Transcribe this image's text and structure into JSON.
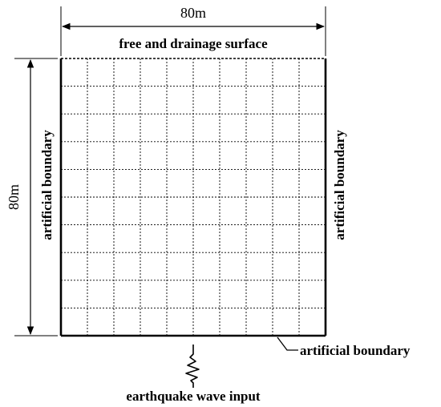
{
  "diagram": {
    "width_label": "80m",
    "height_label": "80m",
    "top_label": "free and drainage surface",
    "left_label": "artificial boundary",
    "right_label": "artificial boundary",
    "bottom_label": "artificial boundary",
    "input_label": "earthquake wave input",
    "grid": {
      "columns": 10,
      "rows": 10
    },
    "colors": {
      "line": "#000000",
      "grid": "#000000",
      "background": "#ffffff"
    }
  }
}
